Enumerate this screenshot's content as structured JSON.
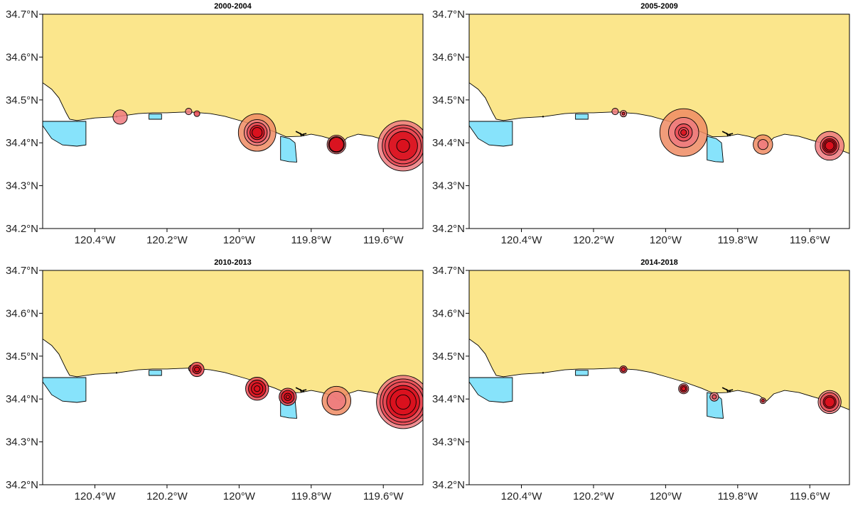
{
  "colors": {
    "land": "#fbe68c",
    "water": "#ffffff",
    "mpa": "#87e3fb",
    "bubble_light": "#ef7a7f",
    "bubble_mid": "#e94a55",
    "bubble_dark": "#d9111d",
    "bubble_orange": "#ee8b63",
    "stroke": "#000000"
  },
  "axes": {
    "xlim": [
      -120.545,
      -119.49
    ],
    "ylim": [
      34.2,
      34.7
    ],
    "yticks": [
      {
        "value": 34.2,
        "label": "34.2°N"
      },
      {
        "value": 34.3,
        "label": "34.3°N"
      },
      {
        "value": 34.4,
        "label": "34.4°N"
      },
      {
        "value": 34.5,
        "label": "34.5°N"
      },
      {
        "value": 34.6,
        "label": "34.6°N"
      },
      {
        "value": 34.7,
        "label": "34.7°N"
      }
    ],
    "xticks": [
      {
        "value": -120.4,
        "label": "120.4°W"
      },
      {
        "value": -120.2,
        "label": "120.2°W"
      },
      {
        "value": -120.0,
        "label": "120°W"
      },
      {
        "value": -119.8,
        "label": "119.8°W"
      },
      {
        "value": -119.6,
        "label": "119.6°W"
      }
    ]
  },
  "coastline": [
    [
      -120.545,
      34.54
    ],
    [
      -120.52,
      34.525
    ],
    [
      -120.5,
      34.505
    ],
    [
      -120.48,
      34.47
    ],
    [
      -120.47,
      34.455
    ],
    [
      -120.45,
      34.452
    ],
    [
      -120.4,
      34.458
    ],
    [
      -120.34,
      34.461
    ],
    [
      -120.28,
      34.468
    ],
    [
      -120.24,
      34.47
    ],
    [
      -120.2,
      34.47
    ],
    [
      -120.14,
      34.472
    ],
    [
      -120.08,
      34.468
    ],
    [
      -120.04,
      34.462
    ],
    [
      -119.99,
      34.45
    ],
    [
      -119.95,
      34.44
    ],
    [
      -119.9,
      34.425
    ],
    [
      -119.87,
      34.414
    ],
    [
      -119.83,
      34.415
    ],
    [
      -119.8,
      34.42
    ],
    [
      -119.77,
      34.415
    ],
    [
      -119.74,
      34.408
    ],
    [
      -119.72,
      34.395
    ],
    [
      -119.7,
      34.412
    ],
    [
      -119.67,
      34.42
    ],
    [
      -119.63,
      34.415
    ],
    [
      -119.59,
      34.405
    ],
    [
      -119.55,
      34.395
    ],
    [
      -119.52,
      34.385
    ],
    [
      -119.49,
      34.375
    ]
  ],
  "mpas": [
    {
      "name": "naples",
      "points": [
        [
          -120.545,
          34.45
        ],
        [
          -120.425,
          34.45
        ],
        [
          -120.425,
          34.395
        ],
        [
          -120.45,
          34.392
        ],
        [
          -120.49,
          34.395
        ],
        [
          -120.52,
          34.41
        ],
        [
          -120.545,
          34.44
        ]
      ]
    },
    {
      "name": "kashtayit",
      "points": [
        [
          -120.25,
          34.467
        ],
        [
          -120.215,
          34.467
        ],
        [
          -120.215,
          34.455
        ],
        [
          -120.25,
          34.455
        ]
      ]
    },
    {
      "name": "campus-point",
      "points": [
        [
          -119.885,
          34.415
        ],
        [
          -119.86,
          34.41
        ],
        [
          -119.845,
          34.4
        ],
        [
          -119.84,
          34.355
        ],
        [
          -119.862,
          34.356
        ],
        [
          -119.885,
          34.36
        ]
      ]
    }
  ],
  "panels": [
    {
      "title": "2000-2004",
      "sites": [
        {
          "lon": -120.33,
          "lat": 34.46,
          "rings": [
            {
              "r": 0.02,
              "c": "bubble_light"
            }
          ]
        },
        {
          "lon": -120.14,
          "lat": 34.473,
          "rings": [
            {
              "r": 0.009,
              "c": "bubble_light"
            }
          ]
        },
        {
          "lon": -120.117,
          "lat": 34.468,
          "rings": [
            {
              "r": 0.008,
              "c": "bubble_mid"
            }
          ]
        },
        {
          "lon": -119.95,
          "lat": 34.424,
          "rings": [
            {
              "r": 0.052,
              "c": "bubble_orange"
            },
            {
              "r": 0.036,
              "c": "bubble_light"
            },
            {
              "r": 0.028,
              "c": "bubble_mid"
            },
            {
              "r": 0.02,
              "c": "bubble_dark"
            },
            {
              "r": 0.014,
              "c": "bubble_dark"
            }
          ]
        },
        {
          "lon": -119.73,
          "lat": 34.396,
          "rings": [
            {
              "r": 0.026,
              "c": "bubble_light"
            },
            {
              "r": 0.022,
              "c": "bubble_dark"
            },
            {
              "r": 0.02,
              "c": "bubble_dark"
            }
          ]
        },
        {
          "lon": -119.545,
          "lat": 34.393,
          "rings": [
            {
              "r": 0.07,
              "c": "bubble_light"
            },
            {
              "r": 0.058,
              "c": "bubble_mid"
            },
            {
              "r": 0.05,
              "c": "bubble_mid"
            },
            {
              "r": 0.04,
              "c": "bubble_dark"
            },
            {
              "r": 0.018,
              "c": "bubble_dark"
            }
          ]
        }
      ]
    },
    {
      "title": "2005-2009",
      "sites": [
        {
          "lon": -120.14,
          "lat": 34.473,
          "rings": [
            {
              "r": 0.009,
              "c": "bubble_light"
            }
          ]
        },
        {
          "lon": -120.117,
          "lat": 34.468,
          "rings": [
            {
              "r": 0.009,
              "c": "bubble_light"
            },
            {
              "r": 0.004,
              "c": "bubble_dark"
            }
          ]
        },
        {
          "lon": -119.95,
          "lat": 34.424,
          "rings": [
            {
              "r": 0.066,
              "c": "bubble_orange"
            },
            {
              "r": 0.042,
              "c": "bubble_light"
            },
            {
              "r": 0.024,
              "c": "bubble_mid"
            },
            {
              "r": 0.014,
              "c": "bubble_mid"
            },
            {
              "r": 0.008,
              "c": "bubble_dark"
            }
          ]
        },
        {
          "lon": -119.73,
          "lat": 34.396,
          "rings": [
            {
              "r": 0.027,
              "c": "bubble_orange"
            },
            {
              "r": 0.014,
              "c": "bubble_light"
            }
          ]
        },
        {
          "lon": -119.545,
          "lat": 34.393,
          "rings": [
            {
              "r": 0.04,
              "c": "bubble_light"
            },
            {
              "r": 0.026,
              "c": "bubble_mid"
            },
            {
              "r": 0.02,
              "c": "bubble_dark"
            },
            {
              "r": 0.016,
              "c": "bubble_dark"
            },
            {
              "r": 0.012,
              "c": "bubble_dark"
            }
          ]
        }
      ]
    },
    {
      "title": "2010-2013",
      "sites": [
        {
          "lon": -120.13,
          "lat": 34.471,
          "rings": [
            {
              "r": 0.01,
              "c": "bubble_light"
            }
          ]
        },
        {
          "lon": -120.117,
          "lat": 34.469,
          "rings": [
            {
              "r": 0.02,
              "c": "bubble_mid"
            },
            {
              "r": 0.012,
              "c": "bubble_dark"
            },
            {
              "r": 0.007,
              "c": "bubble_dark"
            }
          ]
        },
        {
          "lon": -119.95,
          "lat": 34.424,
          "rings": [
            {
              "r": 0.032,
              "c": "bubble_mid"
            },
            {
              "r": 0.024,
              "c": "bubble_dark"
            },
            {
              "r": 0.016,
              "c": "bubble_dark"
            },
            {
              "r": 0.008,
              "c": "bubble_dark"
            }
          ]
        },
        {
          "lon": -119.865,
          "lat": 34.405,
          "rings": [
            {
              "r": 0.024,
              "c": "bubble_mid"
            },
            {
              "r": 0.018,
              "c": "bubble_dark"
            },
            {
              "r": 0.01,
              "c": "bubble_dark"
            },
            {
              "r": 0.005,
              "c": "bubble_dark"
            }
          ]
        },
        {
          "lon": -119.73,
          "lat": 34.396,
          "rings": [
            {
              "r": 0.04,
              "c": "bubble_orange"
            },
            {
              "r": 0.026,
              "c": "bubble_light"
            }
          ]
        },
        {
          "lon": -119.545,
          "lat": 34.393,
          "rings": [
            {
              "r": 0.074,
              "c": "bubble_light"
            },
            {
              "r": 0.064,
              "c": "bubble_mid"
            },
            {
              "r": 0.056,
              "c": "bubble_mid"
            },
            {
              "r": 0.046,
              "c": "bubble_dark"
            },
            {
              "r": 0.036,
              "c": "bubble_dark"
            },
            {
              "r": 0.02,
              "c": "bubble_dark"
            }
          ]
        }
      ]
    },
    {
      "title": "2014-2018",
      "sites": [
        {
          "lon": -120.117,
          "lat": 34.469,
          "rings": [
            {
              "r": 0.01,
              "c": "bubble_mid"
            },
            {
              "r": 0.006,
              "c": "bubble_dark"
            }
          ]
        },
        {
          "lon": -119.95,
          "lat": 34.424,
          "rings": [
            {
              "r": 0.014,
              "c": "bubble_light"
            },
            {
              "r": 0.01,
              "c": "bubble_dark"
            },
            {
              "r": 0.006,
              "c": "bubble_dark"
            }
          ]
        },
        {
          "lon": -119.865,
          "lat": 34.405,
          "rings": [
            {
              "r": 0.012,
              "c": "bubble_light"
            },
            {
              "r": 0.006,
              "c": "bubble_mid"
            }
          ]
        },
        {
          "lon": -119.73,
          "lat": 34.396,
          "rings": [
            {
              "r": 0.008,
              "c": "bubble_light"
            },
            {
              "r": 0.004,
              "c": "bubble_dark"
            }
          ]
        },
        {
          "lon": -119.545,
          "lat": 34.393,
          "rings": [
            {
              "r": 0.032,
              "c": "bubble_light"
            },
            {
              "r": 0.026,
              "c": "bubble_mid"
            },
            {
              "r": 0.018,
              "c": "bubble_dark"
            },
            {
              "r": 0.014,
              "c": "bubble_dark"
            }
          ]
        }
      ]
    }
  ]
}
